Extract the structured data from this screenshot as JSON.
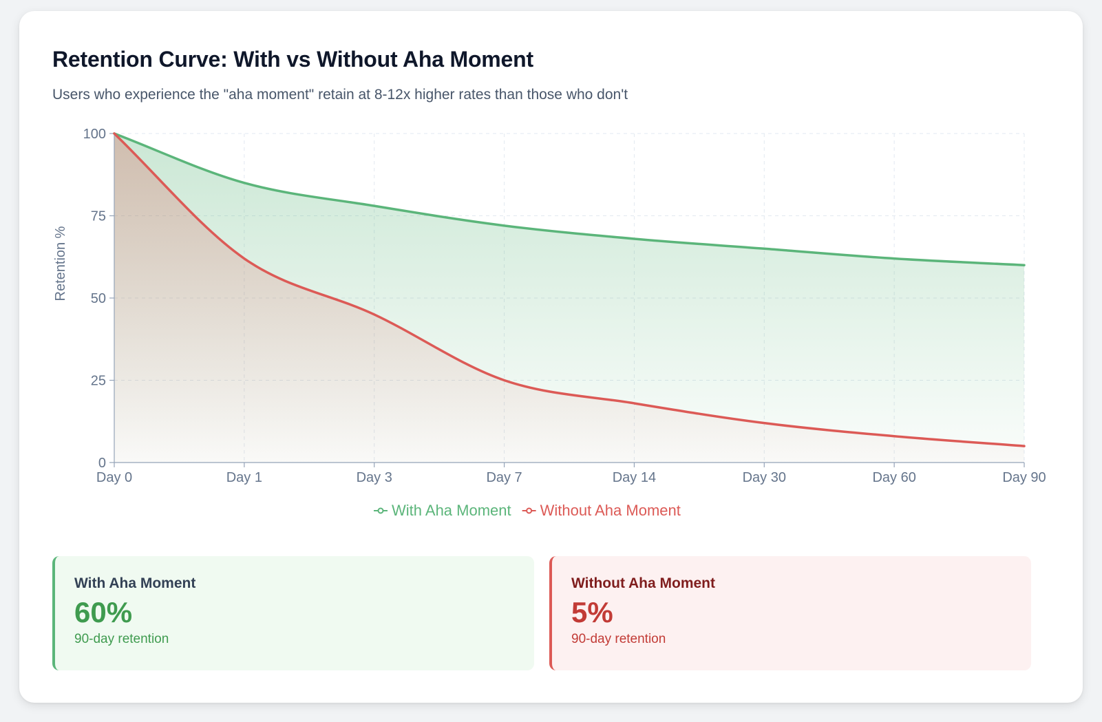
{
  "header": {
    "title": "Retention Curve: With vs Without Aha Moment",
    "subtitle": "Users who experience the \"aha moment\" retain at 8-12x higher rates than those who don't"
  },
  "chart_data": {
    "type": "area",
    "categories": [
      "Day 0",
      "Day 1",
      "Day 3",
      "Day 7",
      "Day 14",
      "Day 30",
      "Day 60",
      "Day 90"
    ],
    "series": [
      {
        "name": "With Aha Moment",
        "values": [
          100,
          85,
          78,
          72,
          68,
          65,
          62,
          60
        ]
      },
      {
        "name": "Without Aha Moment",
        "values": [
          100,
          62,
          45,
          25,
          18,
          12,
          8,
          5
        ]
      }
    ],
    "title": "Retention Curve: With vs Without Aha Moment",
    "xlabel": "",
    "ylabel": "Retention %",
    "ylim": [
      0,
      100
    ],
    "yticks": [
      0,
      25,
      50,
      75,
      100
    ],
    "grid": true,
    "legend_position": "bottom-center"
  },
  "colors": {
    "with": "#5bb57a",
    "without": "#dc5a56",
    "with_text": "#3f9b4f",
    "without_text": "#c23b36",
    "with_label": "#334155",
    "without_label": "#7f1d1d"
  },
  "stats": {
    "with": {
      "label": "With Aha Moment",
      "value": "60%",
      "caption": "90-day retention"
    },
    "without": {
      "label": "Without Aha Moment",
      "value": "5%",
      "caption": "90-day retention"
    }
  }
}
